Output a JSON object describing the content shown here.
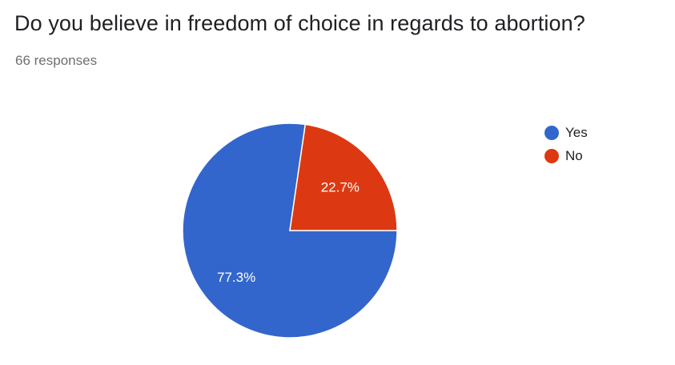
{
  "question": {
    "title": "Do you believe in freedom of choice in regards to abortion?",
    "responses": "66 responses"
  },
  "chart_data": {
    "type": "pie",
    "categories": [
      "Yes",
      "No"
    ],
    "values": [
      77.3,
      22.7
    ],
    "data_labels": [
      "77.3%",
      "22.7%"
    ],
    "colors": [
      "#3366cc",
      "#dc3912"
    ],
    "legend_position": "right"
  }
}
